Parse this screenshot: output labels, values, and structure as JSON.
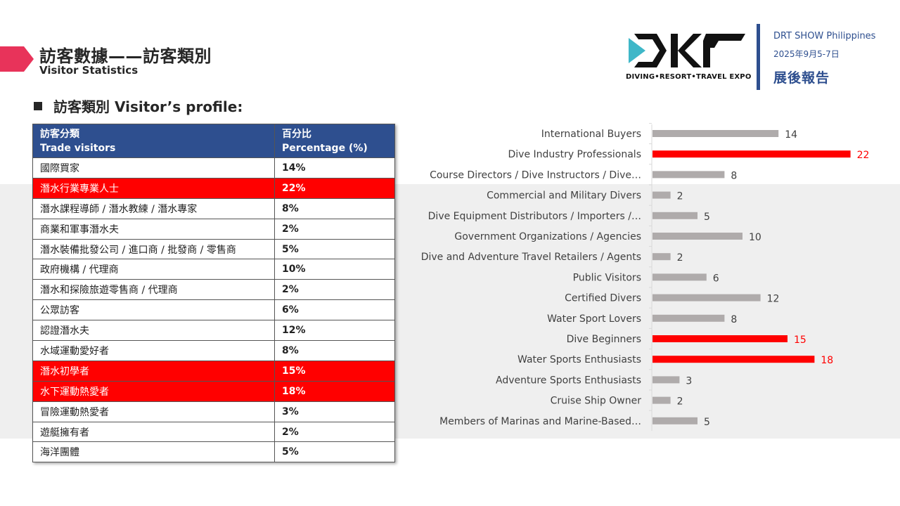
{
  "header": {
    "title_zh": "訪客數據——訪客類別",
    "title_en": "Visitor Statistics",
    "accent_color": "#e8335a"
  },
  "brand": {
    "logo_tagline": "DIVING•RESORT•TRAVEL EXPO",
    "show_name": "DRT SHOW Philippines",
    "show_date": "2025年9月5-7日",
    "report_label": "展後報告",
    "brand_color": "#2e4f8f"
  },
  "section": {
    "heading": "訪客類別 Visitor’s profile:"
  },
  "table": {
    "header_col1_line1": "訪客分類",
    "header_col1_line2": "Trade visitors",
    "header_col2_line1": "百分比",
    "header_col2_line2": "Percentage (%)",
    "rows": [
      {
        "label": "國際買家",
        "pct": "14%",
        "highlight": false
      },
      {
        "label": "潛水行業專業人士",
        "pct": "22%",
        "highlight": true
      },
      {
        "label": "潛水課程導師 / 潛水教練 / 潛水專家",
        "pct": "8%",
        "highlight": false
      },
      {
        "label": "商業和軍事潛水夫",
        "pct": "2%",
        "highlight": false
      },
      {
        "label": "潛水裝備批發公司 / 進口商 / 批發商 / 零售商",
        "pct": "5%",
        "highlight": false
      },
      {
        "label": "政府機構 / 代理商",
        "pct": "10%",
        "highlight": false
      },
      {
        "label": "潛水和探險旅遊零售商 / 代理商",
        "pct": "2%",
        "highlight": false
      },
      {
        "label": "公眾訪客",
        "pct": "6%",
        "highlight": false
      },
      {
        "label": "認證潛水夫",
        "pct": "12%",
        "highlight": false
      },
      {
        "label": "水域運動愛好者",
        "pct": "8%",
        "highlight": false
      },
      {
        "label": "潛水初學者",
        "pct": "15%",
        "highlight": true
      },
      {
        "label": "水下運動熱愛者",
        "pct": "18%",
        "highlight": true
      },
      {
        "label": "冒險運動熱愛者",
        "pct": "3%",
        "highlight": false
      },
      {
        "label": "遊艇擁有者",
        "pct": "2%",
        "highlight": false
      },
      {
        "label": "海洋團體",
        "pct": "5%",
        "highlight": false
      }
    ]
  },
  "chart_data": {
    "type": "bar",
    "orientation": "horizontal",
    "categories": [
      "International Buyers",
      "Dive Industry Professionals",
      "Course Directors / Dive Instructors / Dive…",
      "Commercial and Military Divers",
      "Dive Equipment Distributors / Importers /…",
      "Government Organizations / Agencies",
      "Dive and Adventure Travel Retailers / Agents",
      "Public Visitors",
      "Certified Divers",
      "Water Sport Lovers",
      "Dive Beginners",
      "Water Sports Enthusiasts",
      "Adventure Sports Enthusiasts",
      "Cruise Ship Owner",
      "Members of Marinas and Marine-Based…"
    ],
    "values": [
      14,
      22,
      8,
      2,
      5,
      10,
      2,
      6,
      12,
      8,
      15,
      18,
      3,
      2,
      5
    ],
    "highlighted": [
      false,
      true,
      false,
      false,
      false,
      false,
      false,
      false,
      false,
      false,
      true,
      true,
      false,
      false,
      false
    ],
    "colors": {
      "default": "#afabab",
      "highlight": "#ff0000",
      "label_default": "#404040",
      "label_highlight": "#ff0000"
    },
    "xlim": [
      0,
      25
    ],
    "grid": false,
    "legend": "none"
  }
}
